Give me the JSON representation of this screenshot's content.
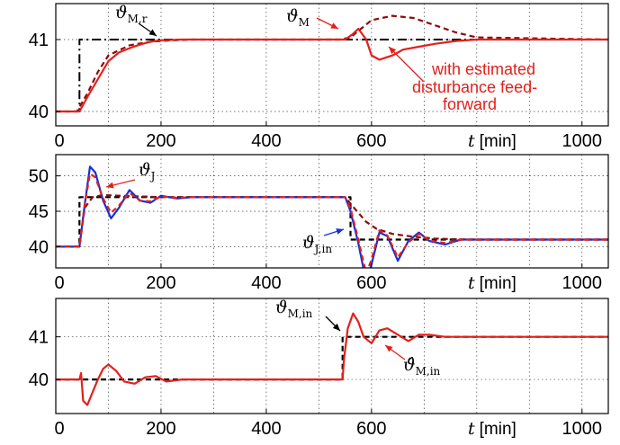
{
  "colors": {
    "red_solid": "#e3201b",
    "dark_red_dashed": "#8b0d0d",
    "blue": "#1530d8",
    "black": "#000000"
  },
  "chart_data": [
    {
      "type": "line",
      "xlim": [
        0,
        1050
      ],
      "ylim": [
        39.8,
        41.5
      ],
      "xticks": [
        "0",
        "200",
        "400",
        "600",
        "1000"
      ],
      "yticks": [
        "40",
        "41"
      ],
      "xlabel_var": "t",
      "xlabel_unit": "[min]",
      "grid": true,
      "annotations": [
        {
          "symbol": "ϑ",
          "sub": "M,r",
          "color": "#000000"
        },
        {
          "symbol": "ϑ",
          "sub": "M",
          "color": "#000000"
        },
        {
          "text": "with estimated",
          "color": "#e3201b"
        },
        {
          "text": "disturbance feed-",
          "color": "#e3201b"
        },
        {
          "text": "forward",
          "color": "#e3201b"
        }
      ],
      "series": [
        {
          "style": "dashdot",
          "color": "#000000",
          "x": [
            0,
            45,
            45,
            1050
          ],
          "y": [
            40,
            40,
            41,
            41
          ]
        },
        {
          "style": "dashed",
          "color": "#8b0d0d",
          "x": [
            0,
            40,
            60,
            80,
            100,
            140,
            180,
            220,
            260,
            300,
            540,
            560,
            580,
            600,
            640,
            680,
            720,
            760,
            800,
            1050
          ],
          "y": [
            40,
            40,
            40.25,
            40.55,
            40.78,
            40.92,
            40.97,
            40.99,
            41,
            41,
            41,
            41.03,
            41.15,
            41.27,
            41.33,
            41.3,
            41.2,
            41.1,
            41.03,
            41
          ]
        },
        {
          "style": "solid",
          "color": "#e3201b",
          "x": [
            0,
            45,
            60,
            80,
            100,
            120,
            140,
            160,
            180,
            200,
            240,
            300,
            550,
            565,
            575,
            590,
            600,
            615,
            640,
            660,
            690,
            720,
            760,
            800,
            1050
          ],
          "y": [
            40,
            40,
            40.2,
            40.45,
            40.7,
            40.82,
            40.88,
            40.93,
            40.97,
            40.99,
            41,
            41,
            41,
            41.08,
            41.15,
            41.0,
            40.78,
            40.72,
            40.78,
            40.86,
            40.9,
            40.94,
            40.98,
            41,
            41
          ]
        }
      ]
    },
    {
      "type": "line",
      "xlim": [
        0,
        1050
      ],
      "ylim": [
        37,
        53
      ],
      "xticks": [
        "0",
        "200",
        "400",
        "600",
        "1000"
      ],
      "yticks": [
        "40",
        "45",
        "50"
      ],
      "xlabel_var": "t",
      "xlabel_unit": "[min]",
      "grid": true,
      "annotations": [
        {
          "symbol": "ϑ",
          "sub": "J",
          "color": "#000000"
        },
        {
          "symbol": "ϑ",
          "sub": "J,in",
          "color": "#000000"
        }
      ],
      "series": [
        {
          "style": "dashed",
          "color": "#000000",
          "x": [
            0,
            45,
            45,
            560,
            560,
            1050
          ],
          "y": [
            40,
            40,
            47,
            47,
            41,
            41
          ]
        },
        {
          "style": "dashed",
          "color": "#8b0d0d",
          "x": [
            0,
            45,
            55,
            70,
            90,
            120,
            160,
            200,
            550,
            570,
            590,
            610,
            640,
            680,
            720,
            760,
            800,
            1050
          ],
          "y": [
            40,
            40,
            45.5,
            47,
            47.3,
            47.2,
            47.1,
            47,
            47,
            45.2,
            43.5,
            42.5,
            41.8,
            41.4,
            41.15,
            41.05,
            41,
            41
          ]
        },
        {
          "style": "solid",
          "color": "#1530d8",
          "x": [
            0,
            45,
            55,
            65,
            75,
            90,
            105,
            120,
            140,
            160,
            180,
            200,
            230,
            260,
            300,
            550,
            560,
            575,
            590,
            600,
            615,
            630,
            650,
            670,
            690,
            710,
            740,
            770,
            800,
            1050
          ],
          "y": [
            40,
            40,
            46,
            51.3,
            50.5,
            46.5,
            44,
            45.5,
            48,
            46.5,
            46.2,
            47.2,
            46.8,
            47,
            47,
            47,
            45,
            40.5,
            35,
            37.5,
            42,
            41.5,
            38,
            40.8,
            42,
            40.8,
            40.3,
            41,
            41,
            41
          ]
        },
        {
          "style": "dashed",
          "color": "#e3201b",
          "x": [
            0,
            45,
            55,
            65,
            75,
            90,
            105,
            120,
            140,
            160,
            180,
            200,
            230,
            260,
            300,
            550,
            560,
            575,
            590,
            600,
            615,
            630,
            650,
            670,
            690,
            710,
            740,
            770,
            800,
            1050
          ],
          "y": [
            40,
            40,
            46,
            50.3,
            49.8,
            46.8,
            44.8,
            45.8,
            47.6,
            46.5,
            46.4,
            47.1,
            46.9,
            47,
            47,
            47,
            45.4,
            41,
            36.2,
            38.2,
            42.3,
            41.6,
            38.5,
            40.6,
            41.8,
            40.9,
            40.5,
            41,
            41,
            41
          ]
        }
      ]
    },
    {
      "type": "line",
      "xlim": [
        0,
        1050
      ],
      "ylim": [
        39.2,
        41.9
      ],
      "xticks": [
        "0",
        "200",
        "400",
        "600",
        "1000"
      ],
      "yticks": [
        "40",
        "41"
      ],
      "xlabel_var": "t",
      "xlabel_unit": "[min]",
      "grid": true,
      "annotations": [
        {
          "symbol": "ϑ",
          "sub": "M,in",
          "color": "#000000"
        },
        {
          "symbol": "ϑ̂",
          "sub": "M,in",
          "color": "#000000"
        }
      ],
      "series": [
        {
          "style": "dashed",
          "color": "#000000",
          "x": [
            0,
            45,
            45,
            545,
            545,
            1050
          ],
          "y": [
            40,
            40,
            40,
            40,
            41,
            41
          ]
        },
        {
          "style": "solid",
          "color": "#e3201b",
          "x": [
            0,
            45,
            48,
            52,
            60,
            70,
            80,
            90,
            100,
            115,
            130,
            150,
            170,
            190,
            210,
            240,
            280,
            545,
            548,
            555,
            565,
            575,
            585,
            600,
            615,
            630,
            650,
            670,
            690,
            710,
            740,
            780,
            1050
          ],
          "y": [
            40,
            40,
            40.15,
            39.5,
            39.4,
            39.7,
            40.0,
            40.25,
            40.35,
            40.2,
            39.95,
            39.9,
            40.05,
            40.08,
            39.95,
            40.0,
            40.0,
            40.0,
            40.5,
            41.2,
            41.55,
            41.35,
            41.0,
            40.85,
            41.15,
            41.2,
            41.05,
            40.9,
            41.05,
            41.05,
            41.0,
            41.0,
            41.0
          ]
        }
      ]
    }
  ]
}
